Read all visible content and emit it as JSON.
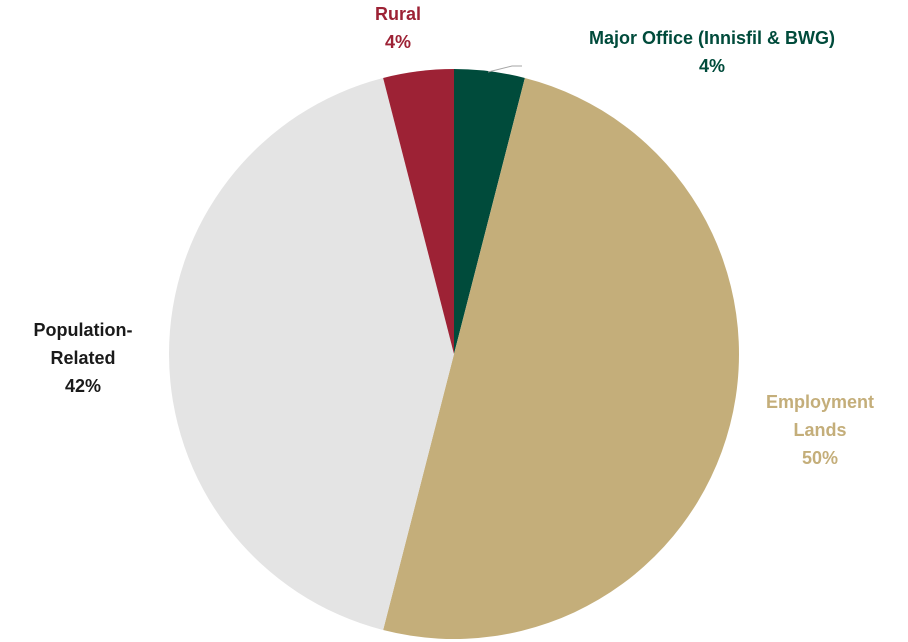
{
  "chart_data": {
    "type": "pie",
    "title": "",
    "slices": [
      {
        "name": "Major Office (Innisfil & BWG)",
        "label_lines": [
          "Major Office (Innisfil & BWG)"
        ],
        "value": 4,
        "value_label": "4%",
        "color": "#004b3b"
      },
      {
        "name": "Employment Lands",
        "label_lines": [
          "Employment",
          "Lands"
        ],
        "value": 50,
        "value_label": "50%",
        "color": "#c4ae7a"
      },
      {
        "name": "Population-Related",
        "label_lines": [
          "Population-",
          "Related"
        ],
        "value": 42,
        "value_label": "42%",
        "color": "#e4e4e4"
      },
      {
        "name": "Rural",
        "label_lines": [
          "Rural"
        ],
        "value": 4,
        "value_label": "4%",
        "color": "#9d2235"
      }
    ],
    "label_colors": {
      "Major Office (Innisfil & BWG)": "#004b3b",
      "Employment Lands": "#c4ae7a",
      "Population-Related": "#1a1a1a",
      "Rural": "#9d2235"
    },
    "start_angle_deg": 0,
    "direction": "clockwise",
    "legend": "none"
  }
}
